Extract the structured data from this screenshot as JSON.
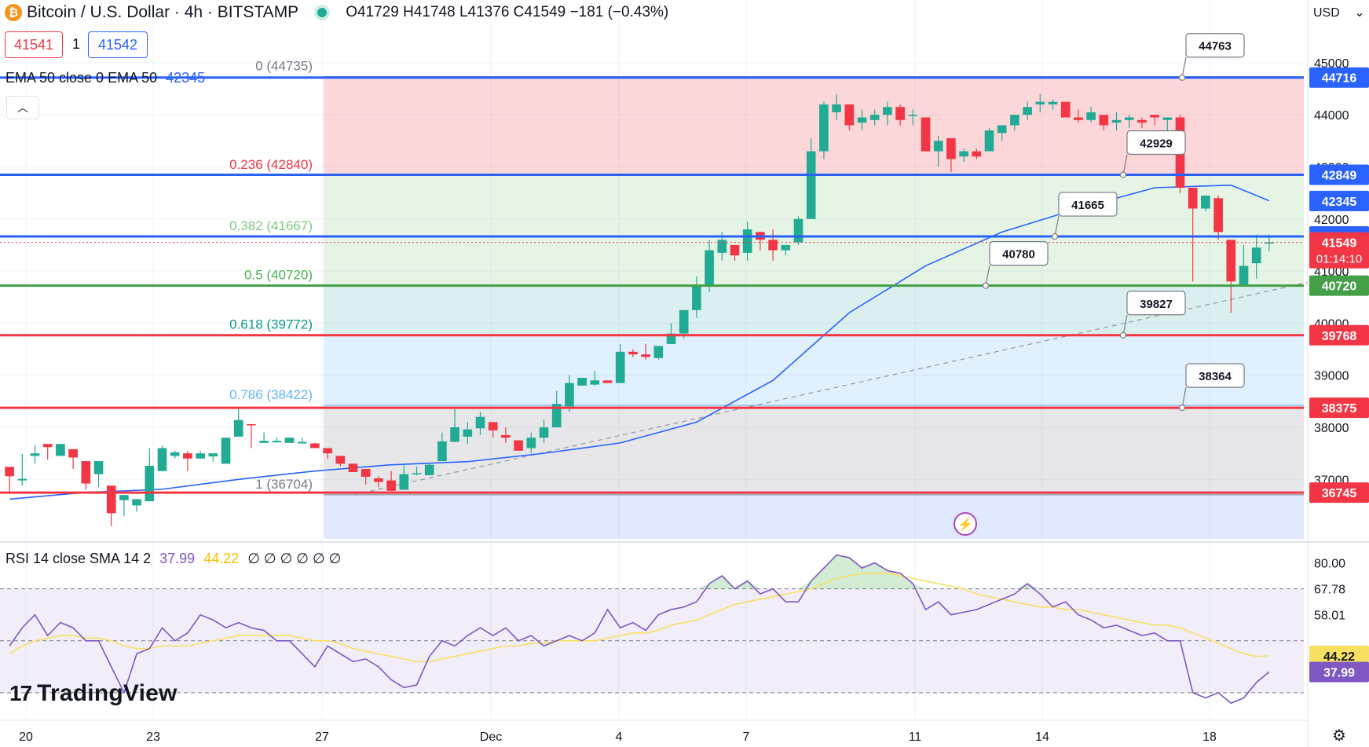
{
  "header": {
    "coin_icon": "bitcoin-icon",
    "symbol_title": "Bitcoin / U.S. Dollar · 4h · BITSTAMP",
    "ohlc": {
      "o_label": "O",
      "o": "41729",
      "h_label": "H",
      "h": "41748",
      "l_label": "L",
      "l": "41376",
      "c_label": "C",
      "c": "41549",
      "change": "−181 (−0.43%)"
    },
    "sell_price": "41541",
    "spread": "1",
    "buy_price": "41542",
    "currency": "USD"
  },
  "ema_legend": {
    "label": "EMA 50 close 0 EMA 50",
    "value": "42345"
  },
  "rsi_legend": {
    "label": "RSI 14 close SMA 14 2",
    "rsi": "37.99",
    "sma": "44.22",
    "tail": "∅ ∅ ∅ ∅ ∅ ∅"
  },
  "watermark": "TradingView",
  "colors": {
    "up": "#22ab94",
    "down": "#f23645",
    "ema": "#2962ff",
    "rsi": "#7e57c2",
    "rsi_sma": "#f7e163",
    "blue_line": "#2962ff",
    "red_line": "#f23645",
    "green_line": "#43a047"
  },
  "chart_data": {
    "type": "candlestick",
    "title": "Bitcoin / U.S. Dollar · 4h · BITSTAMP",
    "x_tick_labels": [
      "20",
      "23",
      "27",
      "Dec",
      "4",
      "7",
      "11",
      "14",
      "18"
    ],
    "y_tick_labels": [
      "45000",
      "44000",
      "43000",
      "42000",
      "41000",
      "40000",
      "39000",
      "38000",
      "37000"
    ],
    "ylim": [
      36250,
      45300
    ],
    "candles": [
      [
        37240,
        37060,
        36760,
        36900
      ],
      [
        36980,
        37010,
        36880,
        37490
      ],
      [
        37450,
        37500,
        37300,
        37660
      ],
      [
        37680,
        37620,
        37540,
        37380
      ],
      [
        37450,
        37680,
        37620,
        37540
      ],
      [
        37580,
        37420,
        37200,
        37380
      ],
      [
        37350,
        36920,
        36800,
        37120
      ],
      [
        37100,
        37350,
        37060,
        36850
      ],
      [
        36880,
        36350,
        36100,
        36760
      ],
      [
        36600,
        36700,
        36300,
        36620
      ],
      [
        36500,
        36620,
        36380,
        36500
      ],
      [
        36580,
        37260,
        37180,
        37600
      ],
      [
        37160,
        37600,
        37500,
        37650
      ],
      [
        37450,
        37520,
        37400,
        37550
      ],
      [
        37500,
        37400,
        37160,
        37550
      ],
      [
        37400,
        37500,
        37550,
        37450
      ],
      [
        37440,
        37500,
        37400,
        37340
      ],
      [
        37300,
        37800,
        37750,
        37510
      ],
      [
        37820,
        38140,
        38380,
        38000
      ],
      [
        38060,
        38050,
        37740,
        37600
      ],
      [
        37700,
        37740,
        37780,
        37900
      ],
      [
        37710,
        37740,
        37800,
        37800
      ],
      [
        37700,
        37800,
        37740,
        37760
      ],
      [
        37690,
        37720,
        37800,
        37700
      ],
      [
        37690,
        37600,
        37600,
        37700
      ],
      [
        37600,
        37500,
        37400,
        37450
      ],
      [
        37450,
        37300,
        37250,
        37380
      ],
      [
        37300,
        37140,
        37180,
        37200
      ],
      [
        37200,
        37050,
        36900,
        37100
      ],
      [
        37020,
        36950,
        36850,
        37060
      ],
      [
        36980,
        36780,
        36900,
        37160
      ],
      [
        36800,
        37100,
        37300,
        36980
      ],
      [
        37100,
        37120,
        37250,
        37080
      ],
      [
        37080,
        37280,
        37300,
        37310
      ],
      [
        37350,
        37730,
        37900,
        37520
      ],
      [
        37720,
        38000,
        38350,
        37950
      ],
      [
        37820,
        37960,
        38100,
        37680
      ],
      [
        37980,
        38200,
        38300,
        37850
      ],
      [
        38100,
        37940,
        37800,
        37850
      ],
      [
        37850,
        37800,
        38000,
        37700
      ],
      [
        37750,
        37550,
        37600,
        37750
      ],
      [
        37600,
        37800,
        37900,
        37500
      ],
      [
        37800,
        38000,
        38150,
        37700
      ],
      [
        38000,
        38450,
        38700,
        38000
      ],
      [
        38400,
        38850,
        39000,
        38300
      ],
      [
        38800,
        38950,
        38800,
        38900
      ],
      [
        38820,
        38900,
        39080,
        38800
      ],
      [
        38900,
        38850,
        38900,
        38900
      ],
      [
        38850,
        39450,
        39600,
        38850
      ],
      [
        39450,
        39400,
        39500,
        39350
      ],
      [
        39400,
        39350,
        39600,
        39300
      ],
      [
        39330,
        39560,
        39550,
        39300
      ],
      [
        39600,
        39800,
        40000,
        39600
      ],
      [
        39800,
        40250,
        40200,
        39700
      ],
      [
        40250,
        40700,
        40900,
        40100
      ],
      [
        40700,
        41400,
        41600,
        40600
      ],
      [
        41350,
        41600,
        41750,
        41200
      ],
      [
        41500,
        41300,
        41450,
        41200
      ],
      [
        41350,
        41800,
        41950,
        41200
      ],
      [
        41750,
        41600,
        41700,
        41400
      ],
      [
        41600,
        41400,
        41800,
        41200
      ],
      [
        41400,
        41500,
        41450,
        41300
      ],
      [
        41550,
        42000,
        42050,
        41500
      ],
      [
        42000,
        43300,
        43550,
        42100
      ],
      [
        43300,
        44200,
        44250,
        43150
      ],
      [
        44050,
        44200,
        44400,
        43900
      ],
      [
        44200,
        43800,
        43900,
        43700
      ],
      [
        43850,
        43950,
        44100,
        43700
      ],
      [
        43900,
        44000,
        44100,
        43800
      ],
      [
        44000,
        44150,
        44250,
        43800
      ],
      [
        44150,
        43900,
        44200,
        43800
      ],
      [
        44000,
        44000,
        44100,
        43800
      ],
      [
        43950,
        43300,
        43850,
        43300
      ],
      [
        43300,
        43500,
        43600,
        43000
      ],
      [
        43550,
        43150,
        43300,
        42900
      ],
      [
        43200,
        43300,
        43350,
        43100
      ],
      [
        43300,
        43200,
        43350,
        43150
      ],
      [
        43300,
        43700,
        43750,
        43400
      ],
      [
        43650,
        43800,
        43700,
        43500
      ],
      [
        43800,
        44000,
        44000,
        43700
      ],
      [
        44000,
        44150,
        44250,
        43900
      ],
      [
        44200,
        44250,
        44400,
        44050
      ],
      [
        44200,
        44250,
        44300,
        44100
      ],
      [
        44250,
        43950,
        44250,
        43950
      ],
      [
        43950,
        43900,
        44100,
        43850
      ],
      [
        43900,
        44050,
        44150,
        43850
      ],
      [
        44000,
        43800,
        43950,
        43700
      ],
      [
        43850,
        43900,
        44050,
        43700
      ],
      [
        43900,
        43950,
        44000,
        43750
      ],
      [
        43900,
        43850,
        43950,
        43750
      ],
      [
        44000,
        43950,
        44000,
        43800
      ],
      [
        43900,
        43950,
        43950,
        43700
      ],
      [
        43950,
        42600,
        44000,
        42500
      ],
      [
        42600,
        42200,
        42300,
        40800
      ],
      [
        42200,
        42450,
        42450,
        42150
      ],
      [
        42400,
        41750,
        42450,
        41600
      ],
      [
        41600,
        40800,
        41600,
        40200
      ],
      [
        40700,
        41100,
        41500,
        40700
      ],
      [
        41150,
        41450,
        41700,
        40850
      ],
      [
        41550,
        41550,
        41700,
        41376
      ]
    ],
    "ema50": [
      [
        0,
        36620
      ],
      [
        6,
        36750
      ],
      [
        12,
        36810
      ],
      [
        18,
        37000
      ],
      [
        24,
        37160
      ],
      [
        30,
        37280
      ],
      [
        36,
        37340
      ],
      [
        42,
        37500
      ],
      [
        48,
        37700
      ],
      [
        54,
        38100
      ],
      [
        60,
        38900
      ],
      [
        66,
        40200
      ],
      [
        72,
        41100
      ],
      [
        78,
        41750
      ],
      [
        84,
        42200
      ],
      [
        90,
        42600
      ],
      [
        96,
        42650
      ],
      [
        99,
        42350
      ]
    ],
    "series": [
      {
        "name": "EMA 50",
        "values_last": "42345"
      },
      {
        "name": "RSI 14",
        "values_last": "37.99"
      },
      {
        "name": "SMA 14",
        "values_last": "44.22"
      }
    ],
    "fibonacci": [
      {
        "level": "0",
        "value": "44735",
        "label": "0 (44735)"
      },
      {
        "level": "0.236",
        "value": "42840",
        "label": "0.236 (42840)"
      },
      {
        "level": "0.382",
        "value": "41667",
        "label": "0.382 (41667)"
      },
      {
        "level": "0.5",
        "value": "40720",
        "label": "0.5 (40720)"
      },
      {
        "level": "0.618",
        "value": "39772",
        "label": "0.618 (39772)"
      },
      {
        "level": "0.786",
        "value": "38422",
        "label": "0.786 (38422)"
      },
      {
        "level": "1",
        "value": "36704",
        "label": "1 (36704)"
      }
    ],
    "horizontal_lines": [
      {
        "value": 44716,
        "label": "44716",
        "color": "#2962ff"
      },
      {
        "value": 42849,
        "label": "42849",
        "color": "#2962ff"
      },
      {
        "value": 41664,
        "label": "41664",
        "color": "#2962ff"
      },
      {
        "value": 40720,
        "label": "40720",
        "color": "#43a047"
      },
      {
        "value": 39768,
        "label": "39768",
        "color": "#f23645"
      },
      {
        "value": 38375,
        "label": "38375",
        "color": "#f23645"
      },
      {
        "value": 36745,
        "label": "36745",
        "color": "#f23645"
      }
    ],
    "callouts": [
      "44763",
      "42929",
      "41665",
      "40780",
      "39827",
      "38364"
    ],
    "price_tags": [
      {
        "value": 42345,
        "label": "42345",
        "color": "#2962ff"
      },
      {
        "value": 41549,
        "label": "41549",
        "sub": "01:14:10",
        "color": "#f23645"
      }
    ],
    "trendline": {
      "from": [
        27,
        36700
      ],
      "to": [
        140,
        42850
      ],
      "style": "dashed"
    },
    "rsi": {
      "y_tick_labels": [
        "80.00",
        "67.78",
        "58.01",
        "44.22",
        "37.99"
      ],
      "ylim": [
        20,
        85
      ],
      "rsi_values": [
        48,
        55,
        60,
        52,
        57,
        55,
        50,
        50,
        40,
        30,
        45,
        47,
        55,
        50,
        53,
        60,
        58,
        55,
        57,
        55,
        54,
        50,
        50,
        45,
        40,
        48,
        45,
        42,
        43,
        40,
        35,
        32,
        33,
        44,
        50,
        48,
        52,
        55,
        52,
        55,
        50,
        52,
        48,
        50,
        52,
        50,
        53,
        62,
        55,
        57,
        54,
        60,
        62,
        63,
        65,
        72,
        75,
        70,
        73,
        68,
        70,
        65,
        65,
        73,
        78,
        83,
        82,
        78,
        80,
        77,
        76,
        72,
        62,
        65,
        60,
        61,
        62,
        64,
        66,
        68,
        72,
        68,
        63,
        65,
        60,
        58,
        55,
        56,
        54,
        52,
        53,
        50,
        50,
        30,
        28,
        30,
        26,
        28,
        34,
        37.99
      ],
      "sma_values": [
        45,
        48,
        50,
        51,
        52,
        52,
        51,
        51,
        50,
        48,
        47,
        47,
        48,
        48,
        48,
        49,
        50,
        51,
        52,
        52,
        52,
        52,
        52,
        51,
        50,
        50,
        49,
        47,
        46,
        45,
        44,
        43,
        42,
        42,
        43,
        44,
        45,
        46,
        47,
        48,
        48,
        49,
        49,
        50,
        50,
        50,
        50,
        51,
        52,
        53,
        53,
        54,
        56,
        57,
        58,
        60,
        62,
        64,
        65,
        66,
        67,
        68,
        69,
        70,
        72,
        74,
        75,
        76,
        76,
        76,
        75,
        74,
        73,
        72,
        71,
        70,
        68,
        67,
        66,
        65,
        64,
        63,
        63,
        62,
        62,
        61,
        60,
        59,
        58,
        57,
        56,
        56,
        55,
        53,
        51,
        49,
        47,
        45,
        44,
        44.22
      ]
    }
  }
}
